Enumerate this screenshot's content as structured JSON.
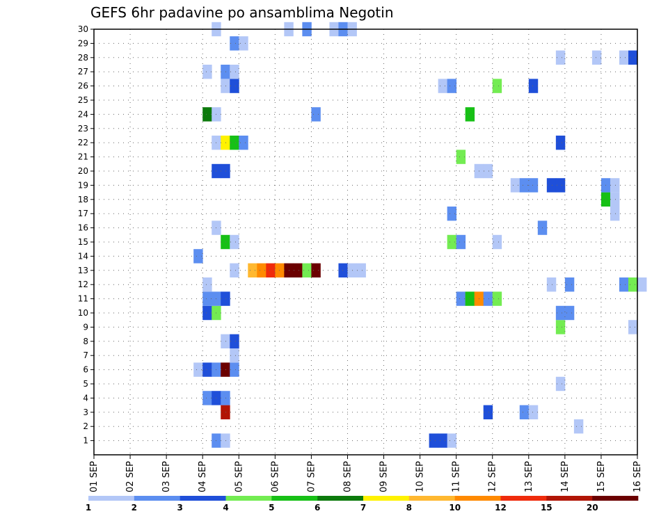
{
  "chart_data": {
    "type": "heatmap",
    "title": "GEFS 6hr padavine po ansamblima Negotin",
    "xlabel": "",
    "ylabel": "",
    "x_tick_labels": [
      "01 SEP",
      "02 SEP",
      "03 SEP",
      "04 SEP",
      "05 SEP",
      "06 SEP",
      "07 SEP",
      "08 SEP",
      "09 SEP",
      "10 SEP",
      "11 SEP",
      "12 SEP",
      "13 SEP",
      "14 SEP",
      "15 SEP",
      "16 SEP"
    ],
    "x_range_days": [
      1,
      16
    ],
    "y_tick_labels": [
      "1",
      "2",
      "3",
      "4",
      "5",
      "6",
      "7",
      "8",
      "9",
      "10",
      "11",
      "12",
      "13",
      "14",
      "15",
      "16",
      "17",
      "18",
      "19",
      "20",
      "21",
      "22",
      "23",
      "24",
      "25",
      "26",
      "27",
      "28",
      "29",
      "30"
    ],
    "y_range": [
      0,
      30
    ],
    "grid": true,
    "colorbar": {
      "labels": [
        "1",
        "2",
        "3",
        "4",
        "5",
        "6",
        "7",
        "8",
        "10",
        "12",
        "15",
        "20"
      ],
      "colors": [
        "#b3c7f7",
        "#5c8ef0",
        "#1f4fd9",
        "#73ec52",
        "#17c016",
        "#0c7a0c",
        "#fff200",
        "#ffb830",
        "#ff8a00",
        "#ef2b0c",
        "#b11505",
        "#6b0000"
      ]
    },
    "cells_note": "each cell: member (y), 6-hour step index from 01 SEP 00z (t), color class index (c, 0-11)",
    "cells": [
      {
        "y": 1,
        "t": 13,
        "c": 1
      },
      {
        "y": 1,
        "t": 14,
        "c": 0
      },
      {
        "y": 1,
        "t": 37,
        "c": 2
      },
      {
        "y": 1,
        "t": 38,
        "c": 2
      },
      {
        "y": 1,
        "t": 39,
        "c": 0
      },
      {
        "y": 2,
        "t": 53,
        "c": 0
      },
      {
        "y": 3,
        "t": 14,
        "c": 10
      },
      {
        "y": 3,
        "t": 43,
        "c": 2
      },
      {
        "y": 3,
        "t": 47,
        "c": 1
      },
      {
        "y": 3,
        "t": 48,
        "c": 0
      },
      {
        "y": 4,
        "t": 12,
        "c": 1
      },
      {
        "y": 4,
        "t": 13,
        "c": 2
      },
      {
        "y": 4,
        "t": 14,
        "c": 1
      },
      {
        "y": 5,
        "t": 51,
        "c": 0
      },
      {
        "y": 6,
        "t": 11,
        "c": 0
      },
      {
        "y": 6,
        "t": 12,
        "c": 2
      },
      {
        "y": 6,
        "t": 13,
        "c": 1
      },
      {
        "y": 6,
        "t": 14,
        "c": 11
      },
      {
        "y": 6,
        "t": 15,
        "c": 1
      },
      {
        "y": 7,
        "t": 15,
        "c": 0
      },
      {
        "y": 8,
        "t": 14,
        "c": 0
      },
      {
        "y": 8,
        "t": 15,
        "c": 2
      },
      {
        "y": 9,
        "t": 51,
        "c": 3
      },
      {
        "y": 9,
        "t": 59,
        "c": 0
      },
      {
        "y": 10,
        "t": 12,
        "c": 2
      },
      {
        "y": 10,
        "t": 13,
        "c": 3
      },
      {
        "y": 10,
        "t": 51,
        "c": 1
      },
      {
        "y": 10,
        "t": 52,
        "c": 1
      },
      {
        "y": 11,
        "t": 12,
        "c": 1
      },
      {
        "y": 11,
        "t": 13,
        "c": 1
      },
      {
        "y": 11,
        "t": 14,
        "c": 2
      },
      {
        "y": 11,
        "t": 40,
        "c": 1
      },
      {
        "y": 11,
        "t": 41,
        "c": 4
      },
      {
        "y": 11,
        "t": 42,
        "c": 8
      },
      {
        "y": 11,
        "t": 43,
        "c": 1
      },
      {
        "y": 11,
        "t": 44,
        "c": 3
      },
      {
        "y": 12,
        "t": 12,
        "c": 0
      },
      {
        "y": 12,
        "t": 50,
        "c": 0
      },
      {
        "y": 12,
        "t": 52,
        "c": 1
      },
      {
        "y": 12,
        "t": 58,
        "c": 1
      },
      {
        "y": 12,
        "t": 59,
        "c": 3
      },
      {
        "y": 12,
        "t": 60,
        "c": 0
      },
      {
        "y": 13,
        "t": 15,
        "c": 0
      },
      {
        "y": 13,
        "t": 17,
        "c": 7
      },
      {
        "y": 13,
        "t": 18,
        "c": 8
      },
      {
        "y": 13,
        "t": 19,
        "c": 9
      },
      {
        "y": 13,
        "t": 20,
        "c": 8
      },
      {
        "y": 13,
        "t": 21,
        "c": 11
      },
      {
        "y": 13,
        "t": 22,
        "c": 11
      },
      {
        "y": 13,
        "t": 23,
        "c": 3
      },
      {
        "y": 13,
        "t": 24,
        "c": 11
      },
      {
        "y": 13,
        "t": 27,
        "c": 2
      },
      {
        "y": 13,
        "t": 28,
        "c": 0
      },
      {
        "y": 13,
        "t": 29,
        "c": 0
      },
      {
        "y": 14,
        "t": 11,
        "c": 1
      },
      {
        "y": 15,
        "t": 14,
        "c": 4
      },
      {
        "y": 15,
        "t": 15,
        "c": 0
      },
      {
        "y": 15,
        "t": 39,
        "c": 3
      },
      {
        "y": 15,
        "t": 40,
        "c": 1
      },
      {
        "y": 15,
        "t": 44,
        "c": 0
      },
      {
        "y": 16,
        "t": 13,
        "c": 0
      },
      {
        "y": 16,
        "t": 49,
        "c": 1
      },
      {
        "y": 17,
        "t": 39,
        "c": 1
      },
      {
        "y": 17,
        "t": 57,
        "c": 0
      },
      {
        "y": 18,
        "t": 56,
        "c": 4
      },
      {
        "y": 18,
        "t": 57,
        "c": 0
      },
      {
        "y": 19,
        "t": 46,
        "c": 0
      },
      {
        "y": 19,
        "t": 47,
        "c": 1
      },
      {
        "y": 19,
        "t": 48,
        "c": 1
      },
      {
        "y": 19,
        "t": 50,
        "c": 2
      },
      {
        "y": 19,
        "t": 51,
        "c": 2
      },
      {
        "y": 19,
        "t": 56,
        "c": 1
      },
      {
        "y": 19,
        "t": 57,
        "c": 0
      },
      {
        "y": 20,
        "t": 13,
        "c": 2
      },
      {
        "y": 20,
        "t": 14,
        "c": 2
      },
      {
        "y": 20,
        "t": 42,
        "c": 0
      },
      {
        "y": 20,
        "t": 43,
        "c": 0
      },
      {
        "y": 21,
        "t": 40,
        "c": 3
      },
      {
        "y": 22,
        "t": 13,
        "c": 0
      },
      {
        "y": 22,
        "t": 14,
        "c": 6
      },
      {
        "y": 22,
        "t": 15,
        "c": 4
      },
      {
        "y": 22,
        "t": 16,
        "c": 1
      },
      {
        "y": 22,
        "t": 51,
        "c": 2
      },
      {
        "y": 24,
        "t": 12,
        "c": 5
      },
      {
        "y": 24,
        "t": 13,
        "c": 0
      },
      {
        "y": 24,
        "t": 24,
        "c": 1
      },
      {
        "y": 24,
        "t": 41,
        "c": 4
      },
      {
        "y": 26,
        "t": 14,
        "c": 0
      },
      {
        "y": 26,
        "t": 15,
        "c": 2
      },
      {
        "y": 26,
        "t": 38,
        "c": 0
      },
      {
        "y": 26,
        "t": 39,
        "c": 1
      },
      {
        "y": 26,
        "t": 44,
        "c": 3
      },
      {
        "y": 26,
        "t": 48,
        "c": 2
      },
      {
        "y": 27,
        "t": 12,
        "c": 0
      },
      {
        "y": 27,
        "t": 14,
        "c": 1
      },
      {
        "y": 27,
        "t": 15,
        "c": 0
      },
      {
        "y": 28,
        "t": 51,
        "c": 0
      },
      {
        "y": 28,
        "t": 55,
        "c": 0
      },
      {
        "y": 28,
        "t": 58,
        "c": 0
      },
      {
        "y": 28,
        "t": 59,
        "c": 2
      },
      {
        "y": 29,
        "t": 15,
        "c": 1
      },
      {
        "y": 29,
        "t": 16,
        "c": 0
      },
      {
        "y": 30,
        "t": 13,
        "c": 0
      },
      {
        "y": 30,
        "t": 21,
        "c": 0
      },
      {
        "y": 30,
        "t": 23,
        "c": 1
      },
      {
        "y": 30,
        "t": 26,
        "c": 0
      },
      {
        "y": 30,
        "t": 27,
        "c": 1
      },
      {
        "y": 30,
        "t": 28,
        "c": 0
      }
    ]
  }
}
